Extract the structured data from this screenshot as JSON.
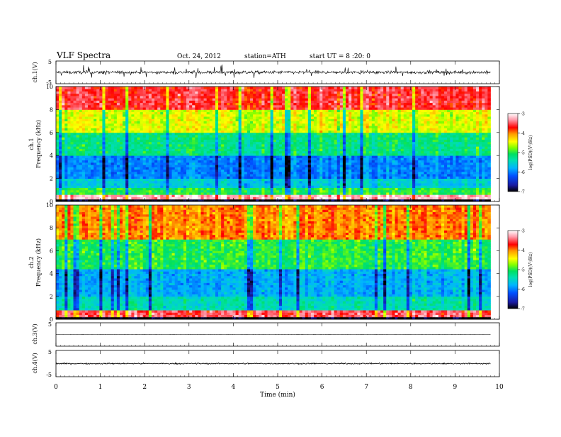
{
  "header": {
    "title": "VLF  Spectra",
    "date": "Oct. 24, 2012",
    "station": "station=ATH",
    "start": "start  UT =   8  :20: 0"
  },
  "colorbar": {
    "label": "log(PSD)(V²/Hz)",
    "ticks": [
      "-3",
      "-4",
      "-5",
      "-6",
      "-7"
    ],
    "colors": [
      "#000000",
      "#1a1aa0",
      "#0050ff",
      "#00b4ff",
      "#00e0b0",
      "#00e060",
      "#80ff00",
      "#ffff00",
      "#ff9900",
      "#ff0000",
      "#ff9aaa",
      "#ffffff"
    ]
  },
  "chart_data": [
    {
      "type": "line",
      "channel": "ch.1(V)",
      "ylabel": "ch.1(V)",
      "ylim": [
        -5,
        5
      ],
      "yticks": [
        "5",
        "-5"
      ],
      "description_level": 0.0,
      "noise_amplitude": 1.2
    },
    {
      "type": "heatmap",
      "channel": "ch.1",
      "ylabel": "ch.1\nFrequency (kHz)",
      "ylabel_channel": "ch.1",
      "ylabel_freq": "Frequency  (kHz)",
      "ylim": [
        0,
        10
      ],
      "yticks": [
        "0",
        "2",
        "4",
        "6",
        "8",
        "10"
      ],
      "value_range": [
        -7,
        -3
      ],
      "bands_khz": [
        [
          0.0,
          0.3,
          -7
        ],
        [
          0.3,
          0.6,
          -3.2
        ],
        [
          0.6,
          1.2,
          -5.0
        ],
        [
          1.2,
          2.0,
          -5.6
        ],
        [
          2.0,
          4.0,
          -6.0
        ],
        [
          4.0,
          6.0,
          -5.2
        ],
        [
          6.0,
          8.0,
          -4.5
        ],
        [
          8.0,
          10.0,
          -3.6
        ]
      ]
    },
    {
      "type": "heatmap",
      "channel": "ch.2",
      "ylabel_channel": "ch.2",
      "ylabel_freq": "Frequency  (kHz)",
      "ylim": [
        0,
        10
      ],
      "yticks": [
        "0",
        "2",
        "4",
        "6",
        "8",
        "10"
      ],
      "value_range": [
        -7,
        -3
      ],
      "bands_khz": [
        [
          0.0,
          0.3,
          -7
        ],
        [
          0.3,
          0.9,
          -3.5
        ],
        [
          0.9,
          2.0,
          -5.4
        ],
        [
          2.0,
          4.5,
          -5.8
        ],
        [
          4.5,
          7.0,
          -5.0
        ],
        [
          7.0,
          10.0,
          -4.0
        ]
      ]
    },
    {
      "type": "line",
      "channel": "ch.3(V)",
      "ylabel": "ch.3(V)",
      "ylim": [
        -5,
        5
      ],
      "yticks": [
        "5"
      ],
      "level": 0.0,
      "noise_amplitude": 0.05
    },
    {
      "type": "line",
      "channel": "ch.4(V)",
      "ylabel": "ch.4(V)",
      "ylim": [
        -5,
        5
      ],
      "yticks": [
        "5",
        "-5"
      ],
      "level": 0.0,
      "noise_amplitude": 0.4
    }
  ],
  "xaxis": {
    "label": "Time  (min)",
    "xlim": [
      0,
      10
    ],
    "ticks": [
      "0",
      "1",
      "2",
      "3",
      "4",
      "5",
      "6",
      "7",
      "8",
      "9",
      "10"
    ],
    "data_end_min": 9.8
  }
}
